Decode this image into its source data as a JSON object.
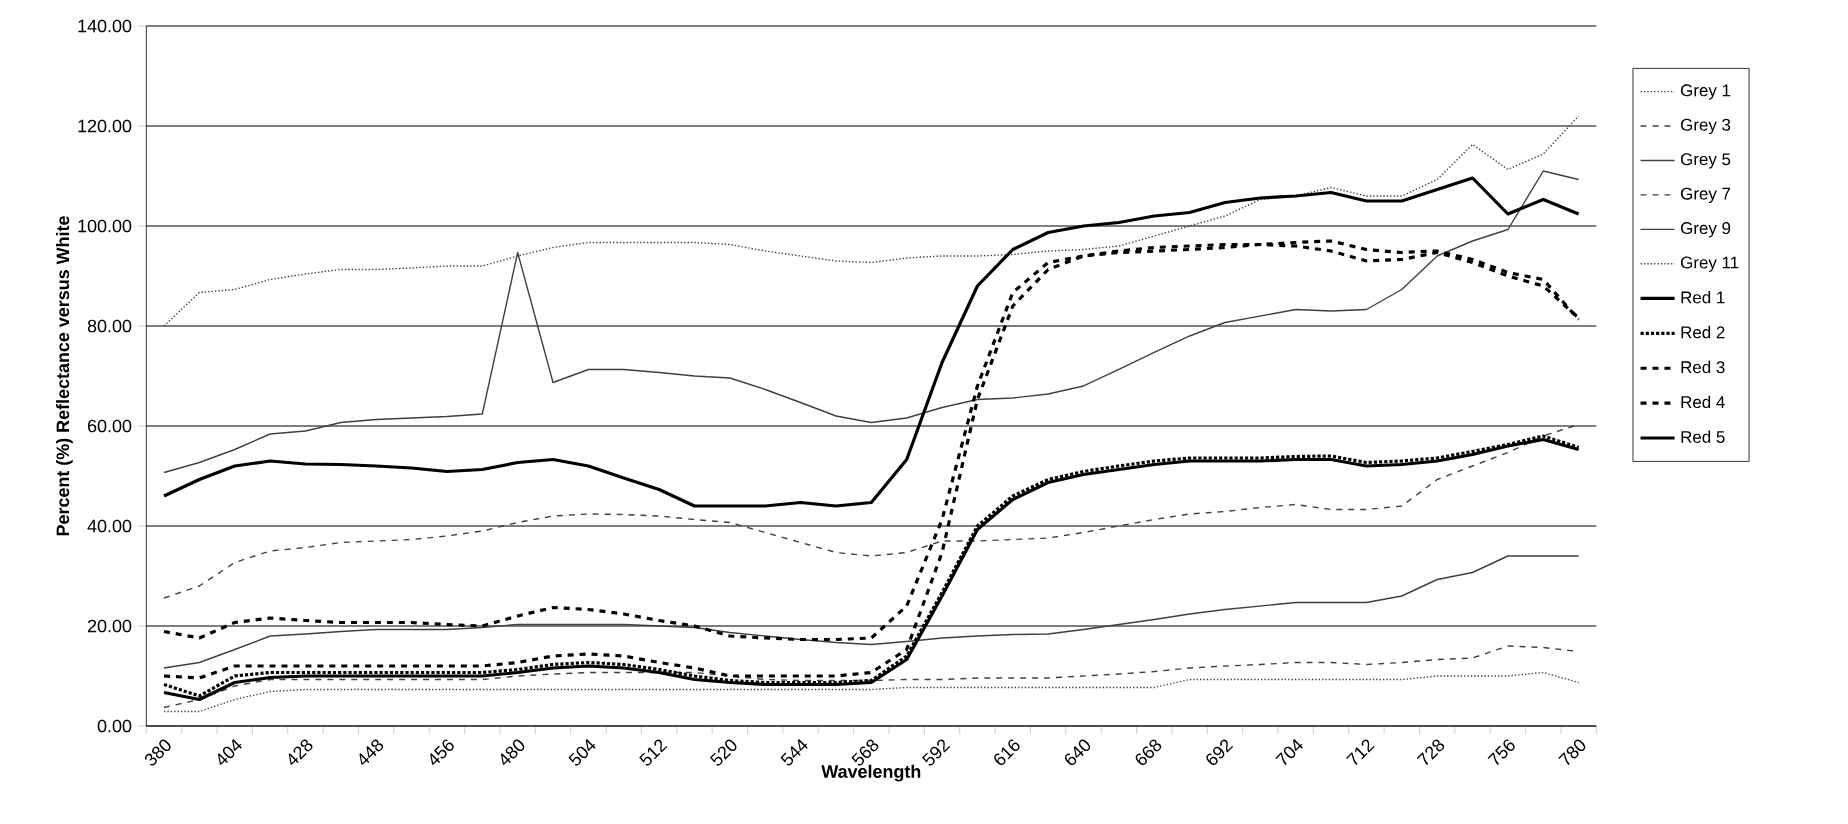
{
  "chart_data": {
    "type": "line",
    "xlabel": "Wavelength",
    "ylabel": "Percent (%) Reflectance versus White",
    "categories": [
      "380",
      null,
      "404",
      null,
      "428",
      null,
      "448",
      null,
      "456",
      null,
      "480",
      null,
      "504",
      null,
      "512",
      null,
      "520",
      null,
      "544",
      null,
      "568",
      null,
      "592",
      null,
      "616",
      null,
      "640",
      null,
      "668",
      null,
      "692",
      null,
      "704",
      null,
      "712",
      null,
      "728",
      null,
      "756",
      null,
      "780"
    ],
    "ylim": [
      0,
      140
    ],
    "yticks": [
      {
        "value": 0,
        "label": "0.00"
      },
      {
        "value": 20,
        "label": "20.00"
      },
      {
        "value": 40,
        "label": "40.00"
      },
      {
        "value": 60,
        "label": "60.00"
      },
      {
        "value": 80,
        "label": "80.00"
      },
      {
        "value": 100,
        "label": "100.00"
      },
      {
        "value": 120,
        "label": "120.00"
      },
      {
        "value": 140,
        "label": "140.00"
      }
    ],
    "grid": "y",
    "legend": "right",
    "marker": "none",
    "series": [
      {
        "name": "Grey 1",
        "color": "#404040",
        "line_style": "dotted",
        "values": [
          80,
          86.7,
          87.3,
          89.3,
          90.4,
          91.3,
          91.3,
          91.6,
          92,
          92,
          94,
          95.7,
          96.7,
          96.7,
          96.7,
          96.7,
          96.3,
          95,
          94,
          93,
          92.7,
          93.6,
          94,
          94,
          94.3,
          95,
          95.3,
          96,
          98,
          100,
          102,
          105.3,
          106,
          107.7,
          106,
          106,
          109.3,
          116.3,
          111.3,
          114.4,
          122
        ]
      },
      {
        "name": "Grey 3",
        "color": "#404040",
        "line_style": "dashed",
        "values": [
          3.7,
          5.3,
          8,
          9.3,
          9.3,
          9.3,
          9.3,
          9.3,
          9.3,
          9.3,
          10,
          10.4,
          10.7,
          10.7,
          10.7,
          10.7,
          10,
          9.3,
          9.1,
          9.1,
          9.1,
          9.3,
          9.3,
          9.6,
          9.6,
          9.6,
          10,
          10.4,
          10.9,
          11.6,
          12,
          12.3,
          12.7,
          12.7,
          12.3,
          12.7,
          13.3,
          13.6,
          16,
          15.7,
          14.9
        ]
      },
      {
        "name": "Grey 5",
        "color": "#404040",
        "line_style": "solid",
        "values": [
          11.6,
          12.7,
          15.3,
          18,
          18.4,
          18.9,
          19.3,
          19.3,
          19.3,
          19.7,
          20.3,
          20.3,
          20.3,
          20.3,
          20,
          19.7,
          18.7,
          18,
          17.3,
          16.7,
          16.3,
          16.9,
          17.6,
          18,
          18.3,
          18.4,
          19.3,
          20.3,
          21.3,
          22.4,
          23.3,
          24,
          24.7,
          24.7,
          24.7,
          26,
          29.3,
          30.7,
          34,
          34,
          34
        ]
      },
      {
        "name": "Grey 7",
        "color": "#404040",
        "line_style": "dashed",
        "values": [
          25.6,
          28,
          32.7,
          35,
          35.7,
          36.7,
          37,
          37.3,
          38,
          39,
          40.7,
          42,
          42.4,
          42.3,
          42,
          41.3,
          40.7,
          38.7,
          36.7,
          34.7,
          34,
          34.7,
          37,
          37,
          37.3,
          37.6,
          38.7,
          40,
          41.3,
          42.4,
          42.9,
          43.7,
          44.3,
          43.3,
          43.3,
          44,
          49.3,
          52,
          54.7,
          58,
          60.3
        ]
      },
      {
        "name": "Grey 9",
        "color": "#404040",
        "line_style": "solid",
        "values": [
          50.7,
          52.7,
          55.3,
          58.4,
          59,
          60.7,
          61.3,
          61.6,
          61.9,
          62.4,
          94.7,
          68.7,
          71.3,
          71.3,
          70.7,
          70,
          69.6,
          67.3,
          64.7,
          62,
          60.7,
          61.6,
          63.7,
          65.3,
          65.6,
          66.4,
          68,
          71.3,
          74.7,
          78,
          80.7,
          82,
          83.3,
          83,
          83.3,
          87.3,
          94,
          97,
          99.3,
          111,
          109.3
        ]
      },
      {
        "name": "Grey 11",
        "color": "#404040",
        "line_style": "dotted",
        "values": [
          2.9,
          2.9,
          5.3,
          6.9,
          7.3,
          7.3,
          7.3,
          7.3,
          7.3,
          7.3,
          7.3,
          7.3,
          7.3,
          7.3,
          7.3,
          7.3,
          7.3,
          7.3,
          7.3,
          7.3,
          7.3,
          7.7,
          7.7,
          7.7,
          7.7,
          7.7,
          7.7,
          7.7,
          7.7,
          9.3,
          9.3,
          9.3,
          9.3,
          9.3,
          9.3,
          9.3,
          10,
          10,
          10,
          10.7,
          8.7
        ]
      },
      {
        "name": "Red 1",
        "color": "#000000",
        "line_style": "solid",
        "values": [
          46,
          49.3,
          52,
          53,
          52.4,
          52.3,
          52,
          51.6,
          50.9,
          51.3,
          52.7,
          53.3,
          52,
          49.6,
          47.3,
          44,
          44,
          44,
          44.7,
          44,
          44.7,
          53.3,
          72.7,
          88,
          95.3,
          98.7,
          100,
          100.7,
          102,
          102.7,
          104.7,
          105.6,
          106,
          106.7,
          105,
          105,
          107.3,
          109.6,
          102.4,
          105.3,
          102.4
        ]
      },
      {
        "name": "Red 2",
        "color": "#000000",
        "line_style": "dotted",
        "values": [
          8.3,
          6,
          10,
          10.7,
          10.7,
          10.7,
          10.7,
          10.7,
          10.7,
          10.7,
          11.3,
          12.3,
          12.7,
          12.3,
          11.3,
          10,
          9.1,
          8.7,
          8.7,
          8.7,
          9.1,
          14,
          26.7,
          40,
          46,
          49.3,
          50.9,
          52,
          53,
          53.6,
          53.6,
          53.6,
          53.9,
          54,
          52.7,
          53,
          53.6,
          54.9,
          56.3,
          58,
          55.7
        ]
      },
      {
        "name": "Red 3",
        "color": "#000000",
        "line_style": "dashed",
        "values": [
          10,
          9.6,
          12,
          12,
          12,
          12,
          12,
          12,
          12,
          12,
          12.7,
          14,
          14.4,
          14,
          12.7,
          11.6,
          10,
          10,
          10,
          10,
          10.7,
          15.3,
          34.7,
          65.3,
          84,
          91.3,
          94,
          94.7,
          95,
          95.3,
          95.7,
          96.3,
          96.7,
          97,
          95.3,
          94.7,
          95,
          93.3,
          90.7,
          89.3,
          81.3
        ]
      },
      {
        "name": "Red 4",
        "color": "#000000",
        "line_style": "dashed",
        "values": [
          18.9,
          17.6,
          20.7,
          21.6,
          21.1,
          20.7,
          20.7,
          20.7,
          20.3,
          20,
          22,
          23.7,
          23.3,
          22.4,
          21.1,
          20,
          18,
          17.6,
          17.3,
          17.3,
          17.6,
          24,
          41.3,
          68,
          86.7,
          92.7,
          94,
          95,
          95.7,
          96,
          96.3,
          96.3,
          96,
          95,
          93,
          93.3,
          94.7,
          92.7,
          90,
          88,
          81.6
        ]
      },
      {
        "name": "Red 5",
        "color": "#000000",
        "line_style": "solid",
        "values": [
          6.7,
          5.3,
          8.7,
          9.7,
          10,
          10,
          10,
          10,
          10,
          10,
          10.7,
          11.6,
          12,
          11.6,
          10.7,
          9.3,
          8.7,
          8.3,
          8.3,
          8.3,
          8.7,
          13.3,
          26,
          39.3,
          45.3,
          48.7,
          50.3,
          51.3,
          52.3,
          53,
          53,
          53,
          53.3,
          53.3,
          52,
          52.3,
          53,
          54.3,
          56,
          57.3,
          55.3
        ]
      }
    ]
  }
}
